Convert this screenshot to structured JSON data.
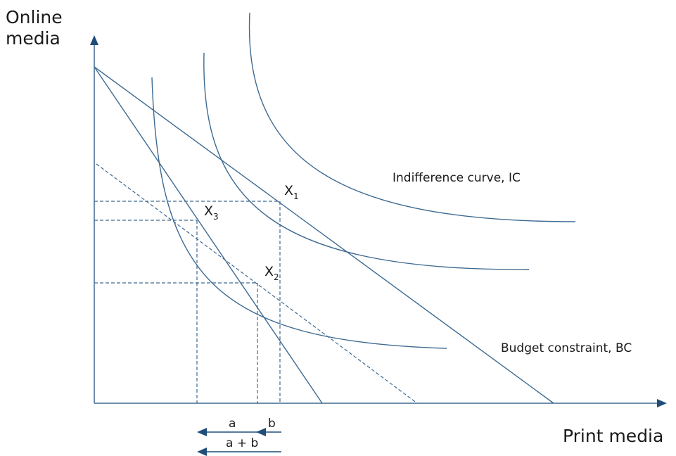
{
  "axes": {
    "y_title_line1": "Online",
    "y_title_line2": "media",
    "x_title": "Print media"
  },
  "labels": {
    "indifference_curve": "Indifference curve, IC",
    "budget_constraint": "Budget constraint, BC",
    "x1_base": "X",
    "x1_sub": "1",
    "x2_base": "X",
    "x2_sub": "2",
    "x3_base": "X",
    "x3_sub": "3",
    "effect_a": "a",
    "effect_b": "b",
    "effect_ab": "a + b"
  },
  "colors": {
    "line": "#3e6a91",
    "dark": "#1f4e79",
    "text": "#1a1a1a"
  }
}
